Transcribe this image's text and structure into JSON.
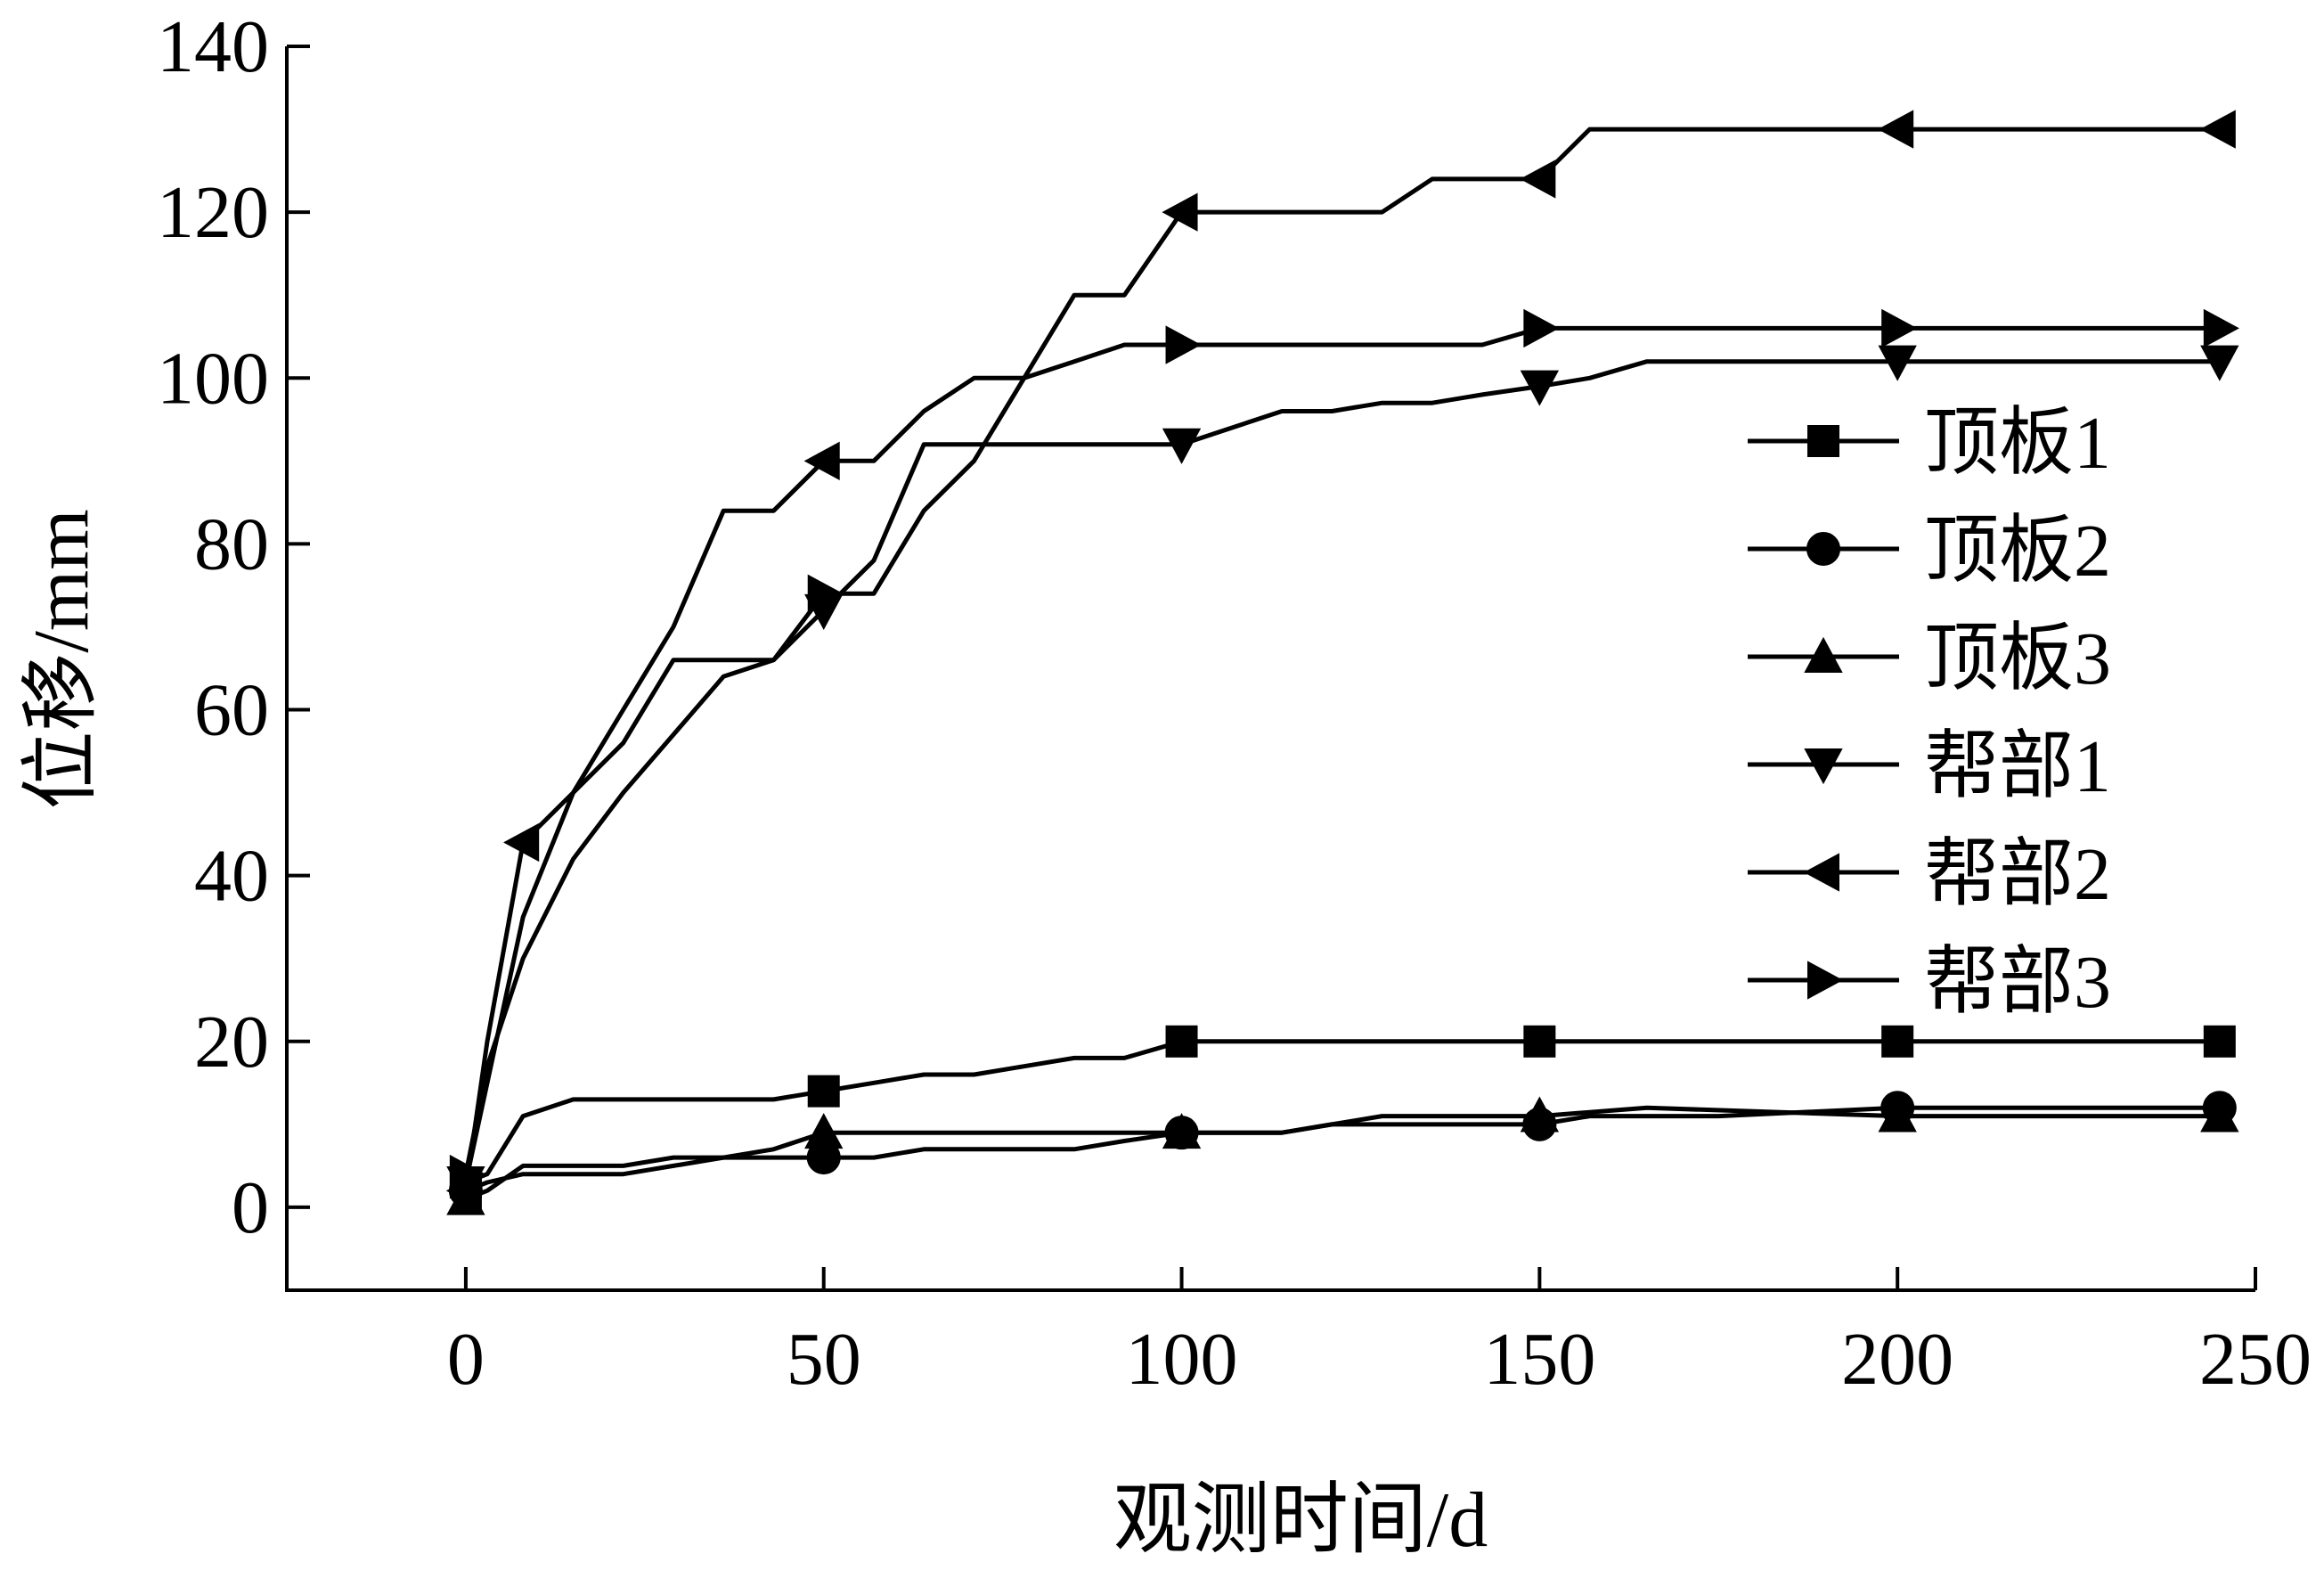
{
  "chart_data": {
    "type": "line",
    "title": "",
    "xlabel": "观测时间/d",
    "ylabel": "位移/mm",
    "xlim": [
      -25,
      250
    ],
    "ylim": [
      -10,
      140
    ],
    "xticks": [
      0,
      50,
      100,
      150,
      200,
      250
    ],
    "yticks": [
      0,
      20,
      40,
      60,
      80,
      100,
      120,
      140
    ],
    "grid": false,
    "legend_position": "right",
    "series": [
      {
        "name": "顶板1",
        "marker": "square",
        "x": [
          0,
          3,
          8,
          15,
          22,
          29,
          36,
          43,
          50,
          57,
          64,
          71,
          78,
          85,
          92,
          100,
          150,
          200,
          245
        ],
        "y": [
          3,
          4,
          11,
          13,
          13,
          13,
          13,
          13,
          14,
          15,
          16,
          16,
          17,
          18,
          18,
          20,
          20,
          20,
          20
        ],
        "marker_x": [
          0,
          50,
          100,
          150,
          200,
          245
        ]
      },
      {
        "name": "顶板2",
        "marker": "circle",
        "x": [
          0,
          3,
          8,
          15,
          22,
          29,
          36,
          43,
          50,
          57,
          64,
          71,
          78,
          85,
          92,
          100,
          107,
          114,
          121,
          128,
          135,
          142,
          150,
          157,
          165,
          175,
          200,
          245
        ],
        "y": [
          2,
          3,
          4,
          4,
          4,
          5,
          6,
          6,
          6,
          6,
          7,
          7,
          7,
          7,
          8,
          9,
          9,
          9,
          10,
          10,
          10,
          10,
          10,
          11,
          11,
          11,
          12,
          12
        ],
        "marker_x": [
          0,
          50,
          100,
          150,
          200,
          245
        ]
      },
      {
        "name": "顶板3",
        "marker": "triangle-up",
        "x": [
          0,
          3,
          8,
          15,
          22,
          29,
          36,
          43,
          50,
          57,
          64,
          71,
          78,
          85,
          92,
          100,
          107,
          114,
          121,
          128,
          135,
          142,
          150,
          165,
          200,
          245
        ],
        "y": [
          1,
          2,
          5,
          5,
          5,
          6,
          6,
          7,
          9,
          9,
          9,
          9,
          9,
          9,
          9,
          9,
          9,
          9,
          10,
          11,
          11,
          11,
          11,
          12,
          11,
          11
        ],
        "marker_x": [
          0,
          50,
          100,
          150,
          200,
          245
        ]
      },
      {
        "name": "帮部1",
        "marker": "triangle-down",
        "x": [
          0,
          3,
          8,
          15,
          22,
          29,
          36,
          43,
          50,
          57,
          64,
          71,
          78,
          85,
          92,
          100,
          107,
          114,
          121,
          128,
          135,
          142,
          150,
          157,
          165,
          175,
          200,
          245
        ],
        "y": [
          3,
          15,
          35,
          50,
          56,
          66,
          66,
          66,
          72,
          78,
          92,
          92,
          92,
          92,
          92,
          92,
          94,
          96,
          96,
          97,
          97,
          98,
          99,
          100,
          102,
          102,
          102,
          102
        ],
        "marker_x": [
          0,
          50,
          100,
          150,
          200,
          245
        ]
      },
      {
        "name": "帮部2",
        "marker": "triangle-left",
        "x": [
          0,
          3,
          8,
          15,
          22,
          29,
          36,
          43,
          50,
          57,
          64,
          71,
          78,
          85,
          92,
          100,
          107,
          114,
          121,
          128,
          135,
          142,
          150,
          157,
          165,
          175,
          200,
          245
        ],
        "y": [
          2,
          20,
          44,
          50,
          60,
          70,
          84,
          84,
          90,
          90,
          96,
          100,
          100,
          110,
          110,
          120,
          120,
          120,
          120,
          120,
          124,
          124,
          124,
          130,
          130,
          130,
          130,
          130
        ],
        "marker_x": [
          0,
          8,
          50,
          100,
          150,
          200,
          245
        ]
      },
      {
        "name": "帮部3",
        "marker": "triangle-right",
        "x": [
          0,
          3,
          8,
          15,
          22,
          29,
          36,
          43,
          50,
          57,
          64,
          71,
          78,
          85,
          92,
          100,
          107,
          114,
          121,
          128,
          135,
          142,
          150,
          157,
          165,
          175,
          200,
          245
        ],
        "y": [
          4,
          17,
          30,
          42,
          50,
          57,
          64,
          66,
          74,
          74,
          84,
          90,
          100,
          102,
          104,
          104,
          104,
          104,
          104,
          104,
          104,
          104,
          106,
          106,
          106,
          106,
          106,
          106
        ],
        "marker_x": [
          0,
          17,
          50,
          100,
          150,
          200,
          245
        ]
      }
    ]
  }
}
